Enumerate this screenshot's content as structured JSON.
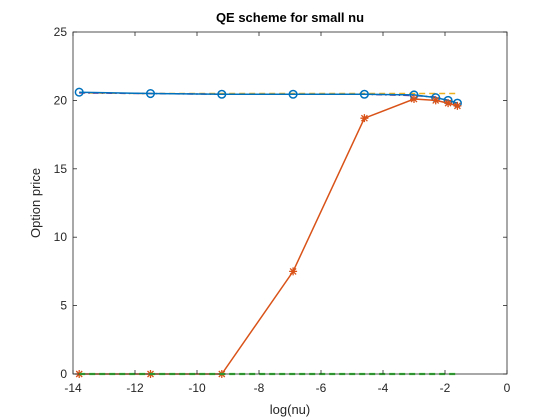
{
  "chart_data": {
    "type": "line",
    "title": "QE scheme for small nu",
    "xlabel": "log(nu)",
    "ylabel": "Option price",
    "xlim": [
      -14,
      0
    ],
    "ylim": [
      0,
      25
    ],
    "xticks": [
      -14,
      -12,
      -10,
      -8,
      -6,
      -4,
      -2,
      0
    ],
    "yticks": [
      0,
      5,
      10,
      15,
      20,
      25
    ],
    "xtick_labels": [
      "-14",
      "-12",
      "-10",
      "-8",
      "-6",
      "-4",
      "-2",
      "0"
    ],
    "ytick_labels": [
      "0",
      "5",
      "10",
      "15",
      "20",
      "25"
    ],
    "grid": false,
    "legend": "none",
    "series": [
      {
        "style": "solid line, circle markers",
        "color": "#0072BD",
        "x": [
          -13.8,
          -11.5,
          -9.2,
          -6.9,
          -4.6,
          -3.0,
          -2.3,
          -1.9,
          -1.6
        ],
        "y": [
          20.6,
          20.5,
          20.45,
          20.45,
          20.45,
          20.4,
          20.2,
          20.0,
          19.8
        ]
      },
      {
        "style": "solid line, asterisk markers",
        "color": "#D95319",
        "x": [
          -13.8,
          -11.5,
          -9.2,
          -6.9,
          -4.6,
          -3.0,
          -2.3,
          -1.9,
          -1.6
        ],
        "y": [
          0,
          0,
          0,
          7.5,
          18.7,
          20.1,
          20.0,
          19.8,
          19.6
        ]
      },
      {
        "style": "dashed line",
        "color": "#EDB120",
        "x": [
          -13.8,
          -11.5,
          -9.2,
          -6.9,
          -4.6,
          -3.0,
          -2.3,
          -1.9,
          -1.6
        ],
        "y": [
          20.55,
          20.5,
          20.5,
          20.5,
          20.5,
          20.5,
          20.5,
          20.5,
          20.5
        ]
      },
      {
        "style": "dash-dot line",
        "color": "#7E2F8E",
        "x": [
          -13.8,
          -11.5,
          -9.2,
          -6.9,
          -4.6,
          -3.0,
          -2.3,
          -1.9,
          -1.6
        ],
        "y": [
          20.55,
          20.5,
          20.45,
          20.45,
          20.45,
          20.35,
          20.25,
          20.0,
          19.8
        ]
      },
      {
        "style": "dashed line",
        "color": "#33DD33",
        "x": [
          -13.8,
          -11.5,
          -9.2,
          -6.9,
          -4.6,
          -3.0,
          -2.3,
          -1.9,
          -1.6
        ],
        "y": [
          0,
          0,
          0,
          0,
          0,
          0,
          0,
          0,
          0
        ]
      }
    ]
  }
}
